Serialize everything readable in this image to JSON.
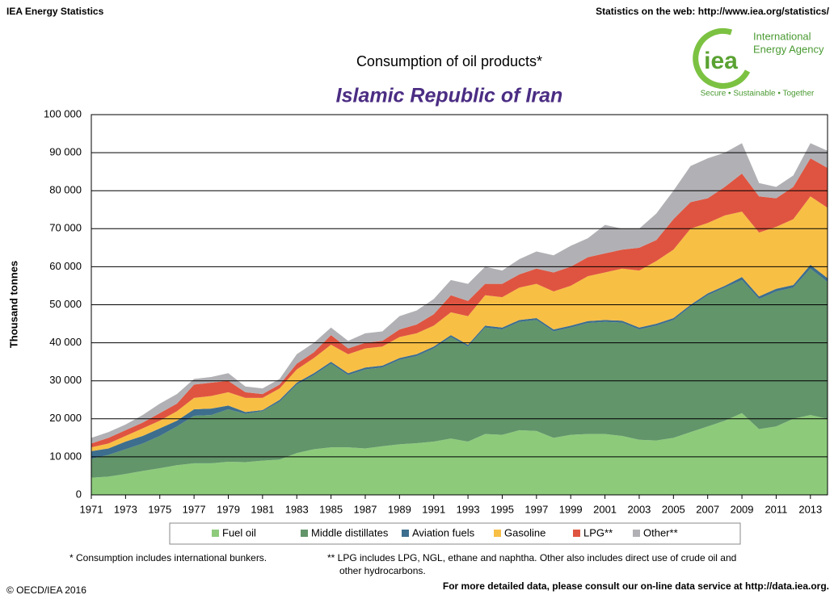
{
  "header": {
    "left": "IEA Energy Statistics",
    "right": "Statistics on the web: http://www.iea.org/statistics/",
    "logo_mark": "iea",
    "logo_name": [
      "International",
      "Energy Agency"
    ],
    "logo_tagline": "Secure • Sustainable • Together"
  },
  "chart_data": {
    "type": "stacked_area",
    "title": "Consumption of oil products*",
    "subtitle": "Islamic Republic of Iran",
    "y_label": "Thousand tonnes",
    "x": [
      1971,
      1972,
      1973,
      1974,
      1975,
      1976,
      1977,
      1978,
      1979,
      1980,
      1981,
      1982,
      1983,
      1984,
      1985,
      1986,
      1987,
      1988,
      1989,
      1990,
      1991,
      1992,
      1993,
      1994,
      1995,
      1996,
      1997,
      1998,
      1999,
      2000,
      2001,
      2002,
      2003,
      2004,
      2005,
      2006,
      2007,
      2008,
      2009,
      2010,
      2011,
      2012,
      2013,
      2014
    ],
    "xlim": [
      1971,
      2014
    ],
    "xticks": [
      1971,
      1973,
      1975,
      1977,
      1979,
      1981,
      1983,
      1985,
      1987,
      1989,
      1991,
      1993,
      1995,
      1997,
      1999,
      2001,
      2003,
      2005,
      2007,
      2009,
      2011,
      2013
    ],
    "ylim": [
      0,
      100000
    ],
    "yticks": [
      0,
      {
        "value": 10000,
        "label": "10 000"
      },
      {
        "value": 20000,
        "label": "20 000"
      },
      {
        "value": 30000,
        "label": "30 000"
      },
      {
        "value": 40000,
        "label": "40 000"
      },
      {
        "value": 50000,
        "label": "50 000"
      },
      {
        "value": 60000,
        "label": "60 000"
      },
      {
        "value": 70000,
        "label": "70 000"
      },
      {
        "value": 80000,
        "label": "80 000"
      },
      {
        "value": 90000,
        "label": "90 000"
      },
      {
        "value": 100000,
        "label": "100 000"
      }
    ],
    "grid": true,
    "series": [
      {
        "name": "Fuel oil",
        "color": "#8dcb7b",
        "values": [
          4500,
          4800,
          5500,
          6300,
          7000,
          7800,
          8300,
          8300,
          8700,
          8600,
          9000,
          9300,
          11000,
          12000,
          12500,
          12500,
          12200,
          12800,
          13300,
          13600,
          14000,
          14800,
          14000,
          16000,
          15800,
          17000,
          16800,
          15000,
          15800,
          16000,
          16000,
          15500,
          14500,
          14300,
          15000,
          16500,
          18000,
          19500,
          21500,
          17300,
          18000,
          20000,
          21000,
          20000
        ]
      },
      {
        "name": "Middle distillates",
        "color": "#62956a",
        "values": [
          5000,
          5700,
          6500,
          7200,
          8500,
          10200,
          12500,
          12700,
          13800,
          12700,
          13000,
          15200,
          18000,
          19500,
          22000,
          19000,
          20800,
          20700,
          22200,
          22900,
          24500,
          26700,
          25000,
          28000,
          27700,
          28500,
          29200,
          28000,
          28200,
          29200,
          29500,
          29800,
          29000,
          30200,
          31000,
          33000,
          34500,
          35000,
          35000,
          34200,
          35500,
          34500,
          38500,
          36000
        ]
      },
      {
        "name": "Aviation fuels",
        "color": "#3d6e8e",
        "values": [
          2000,
          1700,
          2000,
          2000,
          2000,
          1500,
          1700,
          1700,
          1000,
          500,
          300,
          500,
          500,
          500,
          500,
          500,
          500,
          500,
          500,
          500,
          500,
          500,
          500,
          500,
          500,
          500,
          500,
          500,
          500,
          500,
          500,
          500,
          500,
          500,
          500,
          500,
          500,
          500,
          800,
          700,
          700,
          700,
          1000,
          1000
        ]
      },
      {
        "name": "Gasoline",
        "color": "#f8bf45",
        "values": [
          1000,
          1300,
          1500,
          2000,
          2000,
          2500,
          3000,
          3300,
          3500,
          3700,
          3200,
          3000,
          3500,
          4000,
          4500,
          5000,
          5000,
          5000,
          5500,
          5500,
          5500,
          6000,
          7500,
          8000,
          8000,
          8500,
          9000,
          10000,
          10500,
          11800,
          12500,
          13700,
          15000,
          16500,
          18000,
          20000,
          18500,
          18500,
          17200,
          16800,
          16300,
          17300,
          18000,
          18500
        ]
      },
      {
        "name": "LPG**",
        "color": "#df5440",
        "values": [
          1000,
          1500,
          1500,
          1500,
          2000,
          2000,
          3500,
          3500,
          3000,
          1500,
          1000,
          1000,
          1500,
          1500,
          2500,
          1500,
          1500,
          1500,
          2000,
          2300,
          3000,
          4500,
          4000,
          3000,
          3500,
          3500,
          4000,
          5000,
          5000,
          5000,
          5000,
          5000,
          6000,
          5500,
          8000,
          7000,
          6500,
          7500,
          10000,
          9500,
          7500,
          8500,
          10000,
          10500
        ]
      },
      {
        "name": "Other**",
        "color": "#b1b1b5",
        "values": [
          1500,
          1500,
          1500,
          2000,
          2500,
          2500,
          1500,
          1500,
          2000,
          1500,
          1500,
          1500,
          2500,
          2500,
          2000,
          2000,
          2500,
          2500,
          3500,
          3700,
          4000,
          4000,
          4500,
          4500,
          3500,
          4000,
          4500,
          4500,
          5500,
          5000,
          7500,
          5500,
          5000,
          7000,
          7500,
          9500,
          10500,
          9000,
          8000,
          3500,
          3000,
          3000,
          4000,
          4500
        ]
      }
    ]
  },
  "footnotes": {
    "bunkers": "* Consumption includes international bunkers.",
    "lpg": [
      "** LPG includes LPG, NGL, ethane and naphtha. Other also includes direct use of crude oil and",
      "other hydrocarbons."
    ],
    "copyright": "© OECD/IEA 2016",
    "more": "For more detailed data, please consult our on-line data service at http://data.iea.org."
  }
}
